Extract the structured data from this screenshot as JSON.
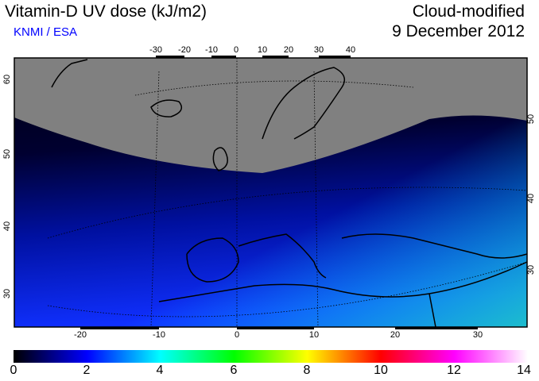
{
  "header": {
    "title": "Vitamin-D UV dose (kJ/m2)",
    "org": "KNMI / ESA",
    "mode": "Cloud-modified",
    "date": "9 December 2012"
  },
  "map": {
    "top_lon_ticks": [
      "-30",
      "-20",
      "-10",
      "0",
      "10",
      "20",
      "30",
      "40"
    ],
    "bottom_lon_ticks": [
      "-20",
      "-10",
      "0",
      "10",
      "20",
      "30"
    ],
    "left_lat_ticks": [
      "60",
      "50",
      "40",
      "30"
    ],
    "right_lat_ticks": [
      "50",
      "40",
      "30"
    ],
    "colors": {
      "polar_night": "#808080",
      "coast": "#000000"
    }
  },
  "colorbar": {
    "min": 0,
    "max": 14,
    "labels": [
      "0",
      "2",
      "4",
      "6",
      "8",
      "10",
      "12",
      "14"
    ],
    "colors": [
      "#000000",
      "#0000ff",
      "#00ffff",
      "#00ff00",
      "#ffff00",
      "#ff0000",
      "#ff00ff",
      "#ffffff"
    ]
  }
}
